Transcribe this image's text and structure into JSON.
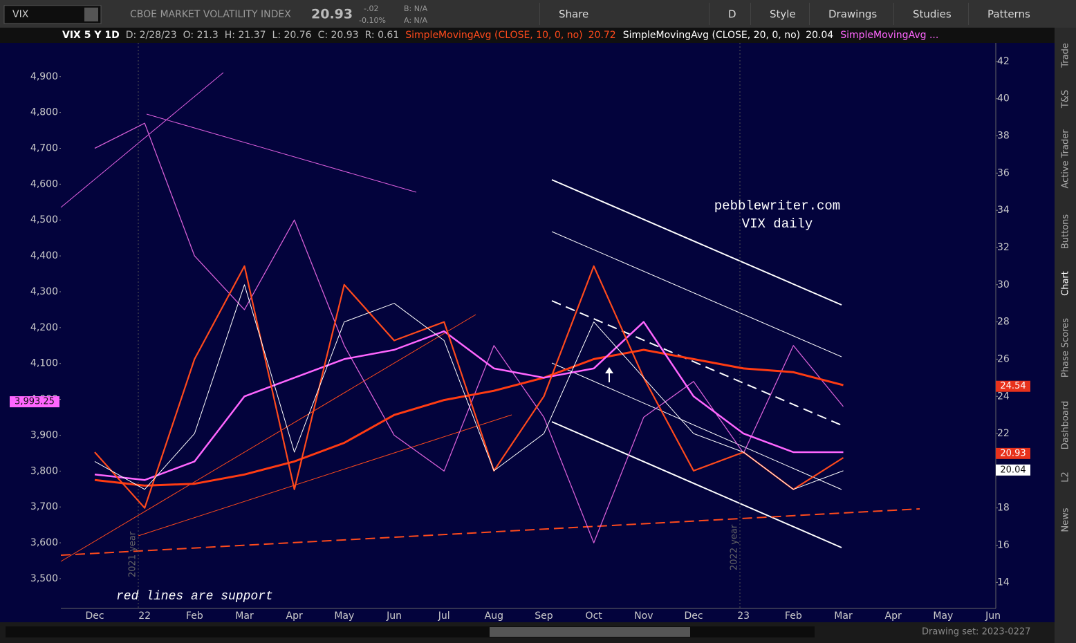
{
  "toolbar": {
    "symbol": "VIX",
    "description": "CBOE MARKET VOLATILITY INDEX",
    "last": "20.93",
    "change": "-.02",
    "change_pct": "-0.10%",
    "bid": "B: N/A",
    "ask": "A: N/A",
    "buttons": [
      "Share",
      "D",
      "Style",
      "Drawings",
      "Studies",
      "Patterns"
    ]
  },
  "info": {
    "symbol_period": "VIX 5 Y 1D",
    "date": "D: 2/28/23",
    "open": "O: 21.3",
    "high": "H: 21.37",
    "low": "L: 20.76",
    "close": "C: 20.93",
    "range": "R: 0.61",
    "studies": [
      {
        "name": "SimpleMovingAvg (CLOSE, 10, 0, no)",
        "value": "20.72",
        "color": "#ff4a1c"
      },
      {
        "name": "SimpleMovingAvg (CLOSE, 20, 0, no)",
        "value": "20.04",
        "color": "#ffffff"
      },
      {
        "name": "SimpleMovingAvg ...",
        "color": "#ff66ff"
      }
    ]
  },
  "side_tabs": [
    "Trade",
    "T&S",
    "Active Trader",
    "Buttons",
    "Chart",
    "Phase Scores",
    "Dashboard",
    "L2",
    "News"
  ],
  "drawing_set": "Drawing set: 2023-0227",
  "chart_data": {
    "type": "line",
    "annotations": [
      "pebblewriter.com",
      "VIX daily",
      "red lines are support",
      "2021 year",
      "2022 year"
    ],
    "x": [
      "Dec",
      "22",
      "Feb",
      "Mar",
      "Apr",
      "May",
      "Jun",
      "Jul",
      "Aug",
      "Sep",
      "Oct",
      "Nov",
      "Dec",
      "23",
      "Feb",
      "Mar",
      "Apr",
      "May",
      "Jun"
    ],
    "ylim": [
      3417,
      4994
    ],
    "yticks": [
      {
        "value": 3500,
        "label": "3,500"
      },
      {
        "value": 3600,
        "label": "3,600"
      },
      {
        "value": 3700,
        "label": "3,700"
      },
      {
        "value": 3800,
        "label": "3,800"
      },
      {
        "value": 3900,
        "label": "3,900"
      },
      {
        "value": 4000,
        "label": "4,000"
      },
      {
        "value": 4100,
        "label": "4,100"
      },
      {
        "value": 4200,
        "label": "4,200"
      },
      {
        "value": 4300,
        "label": "4,300"
      },
      {
        "value": 4400,
        "label": "4,400"
      },
      {
        "value": 4500,
        "label": "4,500"
      },
      {
        "value": 4600,
        "label": "4,600"
      },
      {
        "value": 4700,
        "label": "4,700"
      },
      {
        "value": 4800,
        "label": "4,800"
      },
      {
        "value": 4900,
        "label": "4,900"
      }
    ],
    "y2lim": [
      12.6,
      43
    ],
    "y2ticks": [
      14,
      16,
      18,
      20,
      22,
      24,
      26,
      28,
      30,
      32,
      34,
      36,
      38,
      40,
      42
    ],
    "grid": false,
    "series": [
      {
        "color": "#d65fd6",
        "width": 1.3,
        "values": [
          4700,
          4770,
          4400,
          4250,
          4500,
          4150,
          3900,
          3800,
          4150,
          3950,
          3600,
          3950,
          4050,
          3850,
          4150,
          3980,
          null,
          null,
          null
        ]
      },
      {
        "color": "#ff3b12",
        "width": 3,
        "axis": "y2",
        "values": [
          19.5,
          19.2,
          19.3,
          19.8,
          20.5,
          21.5,
          23,
          23.8,
          24.3,
          25,
          26,
          26.5,
          26,
          25.5,
          25.3,
          24.6,
          null,
          null,
          null
        ]
      },
      {
        "color": "#ff66ff",
        "width": 2.5,
        "axis": "y2",
        "values": [
          19.8,
          19.5,
          20.5,
          24,
          25,
          26,
          26.5,
          27.5,
          25.5,
          25,
          25.5,
          28,
          24,
          22,
          21,
          21,
          null,
          null,
          null
        ]
      },
      {
        "color": "#ff4a1c",
        "width": 2.2,
        "axis": "y2",
        "values": [
          21,
          18,
          26,
          31,
          19,
          30,
          27,
          28,
          20,
          24,
          31,
          25,
          20,
          21,
          19,
          20.7,
          null,
          null,
          null
        ]
      },
      {
        "color": "#ffffff",
        "width": 1,
        "axis": "y2",
        "values": [
          20.5,
          19,
          22,
          30,
          21,
          28,
          29,
          27,
          20,
          22,
          28,
          25,
          22,
          21,
          19,
          20,
          null,
          null,
          null
        ]
      }
    ],
    "price_markers": [
      {
        "axis": "y",
        "value": 3993.25,
        "label": "3,993.25",
        "color": "#ff66ff"
      },
      {
        "axis": "y2",
        "value": 24.54,
        "color": "#e8321c"
      },
      {
        "axis": "y2",
        "value": 20.93,
        "color": "#e8321c"
      },
      {
        "axis": "y2",
        "value": 20.04,
        "color": "#ffffff"
      }
    ]
  }
}
